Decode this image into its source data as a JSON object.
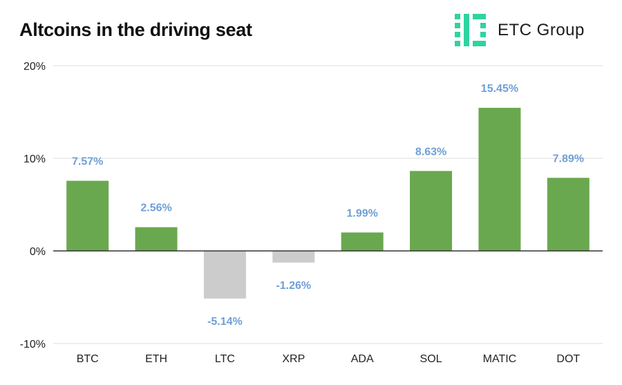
{
  "header": {
    "title": "Altcoins in the driving seat",
    "brand": "ETC Group",
    "brand_color": "#2fd3a0"
  },
  "chart_data": {
    "type": "bar",
    "title": "Altcoins in the driving seat",
    "xlabel": "",
    "ylabel": "",
    "categories": [
      "BTC",
      "ETH",
      "LTC",
      "XRP",
      "ADA",
      "SOL",
      "MATIC",
      "DOT"
    ],
    "values": [
      7.57,
      2.56,
      -5.14,
      -1.26,
      1.99,
      8.63,
      15.45,
      7.89
    ],
    "data_labels": [
      "7.57%",
      "2.56%",
      "-5.14%",
      "-1.26%",
      "1.99%",
      "8.63%",
      "15.45%",
      "7.89%"
    ],
    "ylim": [
      -10,
      20
    ],
    "yticks": [
      -10,
      0,
      10,
      20
    ],
    "ytick_labels": [
      "-10%",
      "0%",
      "10%",
      "20%"
    ],
    "grid": true,
    "colors": {
      "positive": "#6aa84f",
      "negative": "#cccccc",
      "data_label": "#6f9fd8",
      "grid": "#dddddd",
      "zero_line": "#333333"
    }
  }
}
